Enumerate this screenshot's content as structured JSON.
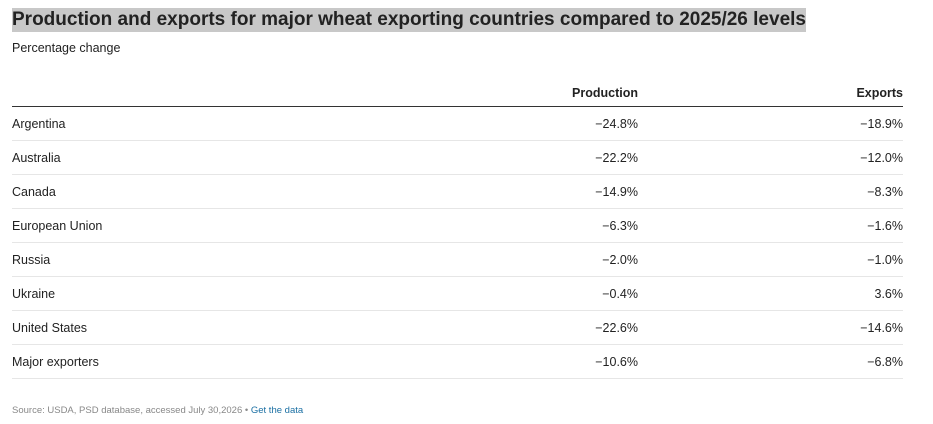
{
  "chart_data": {
    "type": "table",
    "title": "Production and exports for major wheat exporting countries compared to 2025/26 levels",
    "subtitle": "Percentage change",
    "columns": [
      "",
      "Production",
      "Exports"
    ],
    "rows": [
      {
        "name": "Argentina",
        "production": "−24.8%",
        "exports": "−18.9%"
      },
      {
        "name": "Australia",
        "production": "−22.2%",
        "exports": "−12.0%"
      },
      {
        "name": "Canada",
        "production": "−14.9%",
        "exports": "−8.3%"
      },
      {
        "name": "European Union",
        "production": "−6.3%",
        "exports": "−1.6%"
      },
      {
        "name": "Russia",
        "production": "−2.0%",
        "exports": "−1.0%"
      },
      {
        "name": "Ukraine",
        "production": "−0.4%",
        "exports": "3.6%"
      },
      {
        "name": "United States",
        "production": "−22.6%",
        "exports": "−14.6%"
      },
      {
        "name": "Major exporters",
        "production": "−10.6%",
        "exports": "−6.8%"
      }
    ]
  },
  "footer": {
    "source": "Source: USDA, PSD database, accessed July 30,2026",
    "separator": "•",
    "link_label": "Get the data"
  }
}
